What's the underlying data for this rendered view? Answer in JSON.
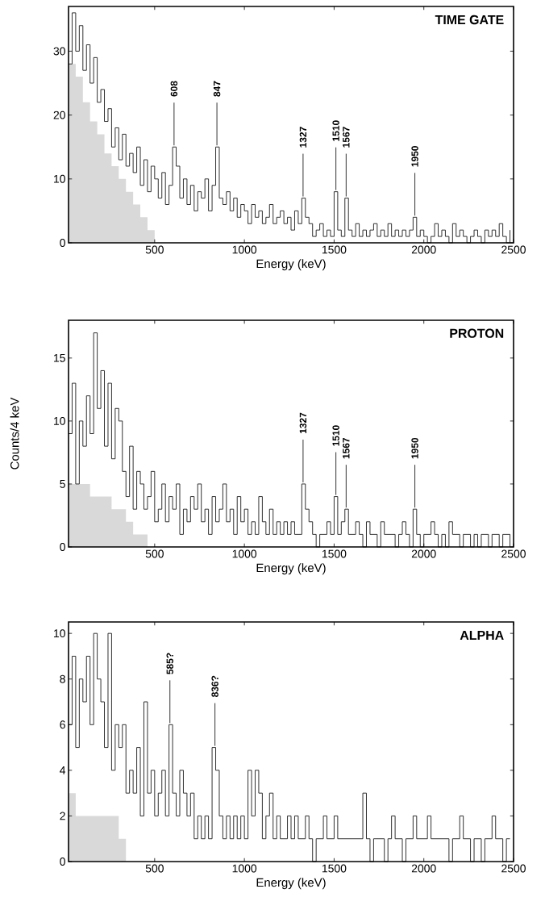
{
  "chart_data": [
    {
      "type": "step",
      "title": "TIME GATE",
      "xlabel": "Energy (keV)",
      "xlim": [
        20,
        2500
      ],
      "xticks": [
        500,
        1000,
        1500,
        2000,
        2500
      ],
      "ylim": [
        0,
        37
      ],
      "yticks": [
        0,
        10,
        20,
        30
      ],
      "series": [
        {
          "type": "area",
          "color": "#d9d9d9",
          "x": [
            20,
            60,
            100,
            140,
            180,
            220,
            260,
            300,
            340,
            380,
            420,
            460,
            500
          ],
          "values": [
            28,
            26,
            22,
            19,
            17,
            14,
            12,
            10,
            8,
            6,
            4,
            2,
            0
          ]
        },
        {
          "color": "#1a1a1a",
          "x": [
            20,
            40,
            60,
            80,
            100,
            120,
            140,
            160,
            180,
            200,
            220,
            240,
            260,
            280,
            300,
            320,
            340,
            360,
            380,
            400,
            420,
            440,
            460,
            480,
            500,
            520,
            540,
            560,
            580,
            600,
            620,
            640,
            660,
            680,
            700,
            720,
            740,
            760,
            780,
            800,
            820,
            840,
            860,
            880,
            900,
            920,
            940,
            960,
            980,
            1000,
            1020,
            1040,
            1060,
            1080,
            1100,
            1120,
            1140,
            1160,
            1180,
            1200,
            1220,
            1240,
            1260,
            1280,
            1300,
            1320,
            1340,
            1360,
            1380,
            1400,
            1420,
            1440,
            1460,
            1480,
            1500,
            1520,
            1540,
            1560,
            1580,
            1600,
            1620,
            1640,
            1660,
            1680,
            1700,
            1720,
            1740,
            1760,
            1780,
            1800,
            1820,
            1840,
            1860,
            1880,
            1900,
            1920,
            1940,
            1960,
            1980,
            2000,
            2020,
            2040,
            2060,
            2080,
            2100,
            2120,
            2140,
            2160,
            2180,
            2200,
            2220,
            2240,
            2260,
            2280,
            2300,
            2320,
            2340,
            2360,
            2380,
            2400,
            2420,
            2440,
            2460,
            2480
          ],
          "values": [
            28,
            36,
            30,
            34,
            27,
            31,
            25,
            29,
            22,
            24,
            19,
            21,
            15,
            18,
            13,
            17,
            12,
            14,
            11,
            15,
            9,
            13,
            8,
            12,
            10,
            7,
            11,
            6,
            9,
            15,
            12,
            7,
            10,
            6,
            9,
            5,
            8,
            7,
            10,
            5,
            9,
            15,
            7,
            6,
            8,
            5,
            7,
            4,
            6,
            5,
            3,
            6,
            4,
            5,
            3,
            4,
            6,
            3,
            4,
            5,
            3,
            4,
            2,
            5,
            3,
            7,
            4,
            3,
            1,
            2,
            3,
            1,
            2,
            1,
            8,
            2,
            1,
            7,
            2,
            1,
            3,
            1,
            2,
            1,
            2,
            3,
            1,
            2,
            1,
            3,
            1,
            2,
            1,
            2,
            1,
            2,
            4,
            1,
            2,
            1,
            0,
            1,
            3,
            1,
            2,
            1,
            0,
            3,
            1,
            2,
            1,
            0,
            1,
            2,
            1,
            0,
            2,
            1,
            2,
            1,
            3,
            1,
            0,
            2
          ]
        }
      ],
      "annotations": [
        {
          "text": "608",
          "x": 608,
          "y": 15
        },
        {
          "text": "847",
          "x": 847,
          "y": 15
        },
        {
          "text": "1327",
          "x": 1327,
          "y": 7
        },
        {
          "text": "1510",
          "x": 1510,
          "y": 8
        },
        {
          "text": "1567",
          "x": 1567,
          "y": 7
        },
        {
          "text": "1950",
          "x": 1950,
          "y": 4
        }
      ]
    },
    {
      "type": "step",
      "title": "PROTON",
      "xlabel": "Energy (keV)",
      "ylabel": "Counts/4 keV",
      "xlim": [
        20,
        2500
      ],
      "xticks": [
        500,
        1000,
        1500,
        2000,
        2500
      ],
      "ylim": [
        0,
        18
      ],
      "yticks": [
        0,
        5,
        10,
        15
      ],
      "series": [
        {
          "type": "area",
          "color": "#d9d9d9",
          "x": [
            20,
            60,
            100,
            140,
            180,
            220,
            260,
            300,
            340,
            380,
            420,
            460,
            500
          ],
          "values": [
            5,
            5,
            5,
            4,
            4,
            4,
            3,
            3,
            2,
            1,
            1,
            0,
            0
          ]
        },
        {
          "color": "#1a1a1a",
          "x": [
            20,
            40,
            60,
            80,
            100,
            120,
            140,
            160,
            180,
            200,
            220,
            240,
            260,
            280,
            300,
            320,
            340,
            360,
            380,
            400,
            420,
            440,
            460,
            480,
            500,
            520,
            540,
            560,
            580,
            600,
            620,
            640,
            660,
            680,
            700,
            720,
            740,
            760,
            780,
            800,
            820,
            840,
            860,
            880,
            900,
            920,
            940,
            960,
            980,
            1000,
            1020,
            1040,
            1060,
            1080,
            1100,
            1120,
            1140,
            1160,
            1180,
            1200,
            1220,
            1240,
            1260,
            1280,
            1300,
            1320,
            1340,
            1360,
            1380,
            1400,
            1420,
            1440,
            1460,
            1480,
            1500,
            1520,
            1540,
            1560,
            1580,
            1600,
            1620,
            1640,
            1660,
            1680,
            1700,
            1720,
            1740,
            1760,
            1780,
            1800,
            1820,
            1840,
            1860,
            1880,
            1900,
            1920,
            1940,
            1960,
            1980,
            2000,
            2020,
            2040,
            2060,
            2080,
            2100,
            2120,
            2140,
            2160,
            2180,
            2200,
            2220,
            2240,
            2260,
            2280,
            2300,
            2320,
            2340,
            2360,
            2380,
            2400,
            2420,
            2440,
            2460,
            2480
          ],
          "values": [
            9,
            13,
            5,
            10,
            8,
            12,
            9,
            17,
            11,
            14,
            8,
            13,
            7,
            11,
            10,
            6,
            4,
            8,
            3,
            6,
            5,
            3,
            4,
            6,
            2,
            3,
            5,
            2,
            4,
            3,
            5,
            1,
            3,
            2,
            4,
            3,
            5,
            2,
            3,
            1,
            4,
            2,
            3,
            5,
            2,
            3,
            1,
            4,
            2,
            3,
            1,
            2,
            1,
            4,
            2,
            1,
            3,
            1,
            2,
            1,
            2,
            1,
            2,
            1,
            1,
            5,
            3,
            2,
            1,
            0,
            1,
            1,
            2,
            1,
            4,
            1,
            2,
            3,
            1,
            1,
            2,
            1,
            0,
            2,
            1,
            1,
            0,
            2,
            1,
            1,
            1,
            0,
            1,
            2,
            1,
            0,
            3,
            1,
            0,
            1,
            1,
            2,
            1,
            0,
            1,
            0,
            2,
            1,
            1,
            0,
            1,
            1,
            0,
            1,
            0,
            1,
            1,
            0,
            1,
            1,
            0,
            1,
            1,
            0
          ]
        }
      ],
      "annotations": [
        {
          "text": "1327",
          "x": 1327,
          "y": 5
        },
        {
          "text": "1510",
          "x": 1510,
          "y": 4
        },
        {
          "text": "1567",
          "x": 1567,
          "y": 3
        },
        {
          "text": "1950",
          "x": 1950,
          "y": 3
        }
      ]
    },
    {
      "type": "step",
      "title": "ALPHA",
      "xlabel": "Energy (keV)",
      "xlim": [
        20,
        2500
      ],
      "xticks": [
        500,
        1000,
        1500,
        2000,
        2500
      ],
      "ylim": [
        0,
        10.5
      ],
      "yticks": [
        0,
        2,
        4,
        6,
        8,
        10
      ],
      "series": [
        {
          "type": "area",
          "color": "#d9d9d9",
          "x": [
            20,
            60,
            100,
            140,
            180,
            220,
            260,
            300,
            340
          ],
          "values": [
            3,
            2,
            2,
            2,
            2,
            2,
            2,
            1,
            0
          ]
        },
        {
          "color": "#1a1a1a",
          "x": [
            20,
            40,
            60,
            80,
            100,
            120,
            140,
            160,
            180,
            200,
            220,
            240,
            260,
            280,
            300,
            320,
            340,
            360,
            380,
            400,
            420,
            440,
            460,
            480,
            500,
            520,
            540,
            560,
            580,
            600,
            620,
            640,
            660,
            680,
            700,
            720,
            740,
            760,
            780,
            800,
            820,
            840,
            860,
            880,
            900,
            920,
            940,
            960,
            980,
            1000,
            1020,
            1040,
            1060,
            1080,
            1100,
            1120,
            1140,
            1160,
            1180,
            1200,
            1220,
            1240,
            1260,
            1280,
            1300,
            1320,
            1340,
            1360,
            1380,
            1400,
            1420,
            1440,
            1460,
            1480,
            1500,
            1520,
            1540,
            1560,
            1580,
            1600,
            1620,
            1640,
            1660,
            1680,
            1700,
            1720,
            1740,
            1760,
            1780,
            1800,
            1820,
            1840,
            1860,
            1880,
            1900,
            1920,
            1940,
            1960,
            1980,
            2000,
            2020,
            2040,
            2060,
            2080,
            2100,
            2120,
            2140,
            2160,
            2180,
            2200,
            2220,
            2240,
            2260,
            2280,
            2300,
            2320,
            2340,
            2360,
            2380,
            2400,
            2420,
            2440,
            2460,
            2480
          ],
          "values": [
            6,
            9,
            5,
            8,
            7,
            9,
            6,
            10,
            8,
            7,
            5,
            10,
            4,
            6,
            5,
            6,
            3,
            4,
            3,
            5,
            2,
            7,
            3,
            4,
            2,
            3,
            4,
            2,
            6,
            3,
            2,
            4,
            3,
            2,
            3,
            1,
            2,
            1,
            2,
            1,
            5,
            4,
            2,
            1,
            2,
            1,
            2,
            1,
            2,
            1,
            4,
            2,
            4,
            3,
            1,
            2,
            3,
            1,
            2,
            1,
            1,
            2,
            1,
            2,
            1,
            1,
            2,
            1,
            0,
            1,
            1,
            2,
            1,
            1,
            2,
            1,
            1,
            1,
            1,
            1,
            1,
            1,
            3,
            1,
            0,
            1,
            1,
            1,
            0,
            1,
            2,
            1,
            1,
            0,
            1,
            1,
            2,
            1,
            1,
            1,
            2,
            1,
            1,
            1,
            1,
            1,
            0,
            1,
            1,
            2,
            1,
            1,
            0,
            1,
            1,
            0,
            1,
            1,
            2,
            1,
            1,
            0,
            1,
            1
          ]
        }
      ],
      "annotations": [
        {
          "text": "585?",
          "x": 585,
          "y": 6
        },
        {
          "text": "836?",
          "x": 836,
          "y": 5
        }
      ]
    }
  ]
}
